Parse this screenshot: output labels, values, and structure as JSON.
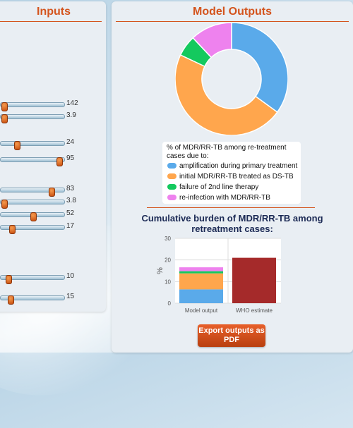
{
  "inputs": {
    "title": "Inputs",
    "sliders": [
      {
        "value": "142",
        "fraction": 0.05
      },
      {
        "value": "3.9",
        "fraction": 0.06
      },
      {
        "value": "24",
        "fraction": 0.25
      },
      {
        "value": "95",
        "fraction": 0.92
      },
      {
        "value": "83",
        "fraction": 0.8
      },
      {
        "value": "3.8",
        "fraction": 0.05
      },
      {
        "value": "52",
        "fraction": 0.51
      },
      {
        "value": "17",
        "fraction": 0.18
      },
      {
        "value": "10",
        "fraction": 0.12
      },
      {
        "value": "15",
        "fraction": 0.15
      }
    ],
    "stray_marks": [
      ":",
      "/"
    ]
  },
  "outputs": {
    "title": "Model Outputs",
    "legend_title": "% of MDR/RR-TB among re-treatment cases due to:",
    "legend": [
      {
        "label": "amplification during primary treatment",
        "color": "#5aaaea"
      },
      {
        "label": "initial MDR/RR-TB treated as DS-TB",
        "color": "#ffa64d"
      },
      {
        "label": "failure of 2nd line therapy",
        "color": "#14c95e"
      },
      {
        "label": "re-infection with MDR/RR-TB",
        "color": "#ee82ee"
      }
    ],
    "burden_title": "Cumulative burden of MDR/RR-TB among retreatment cases:",
    "export_label": "Export outputs as PDF"
  },
  "chart_data": [
    {
      "type": "pie",
      "title": "",
      "slices": [
        {
          "label": "amplification during primary treatment",
          "value": 35,
          "color": "#5aaaea"
        },
        {
          "label": "initial MDR/RR-TB treated as DS-TB",
          "value": 47,
          "color": "#ffa64d"
        },
        {
          "label": "failure of 2nd line therapy",
          "value": 6,
          "color": "#14c95e"
        },
        {
          "label": "re-infection with MDR/RR-TB",
          "value": 12,
          "color": "#ee82ee"
        }
      ]
    },
    {
      "type": "bar",
      "title": "Cumulative burden of MDR/RR-TB among retreatment cases:",
      "ylabel": "%",
      "xlabel": "",
      "ylim": [
        0,
        30
      ],
      "yticks": [
        0,
        10,
        20,
        30
      ],
      "grid": true,
      "categories": [
        "Model output",
        "WHO estimate"
      ],
      "stacks": [
        [
          {
            "value": 6.4,
            "color": "#5aaaea"
          },
          {
            "value": 7.4,
            "color": "#ffa64d"
          },
          {
            "value": 1.0,
            "color": "#14c95e"
          },
          {
            "value": 1.8,
            "color": "#ee82ee"
          }
        ],
        [
          {
            "value": 21,
            "color": "#a52a2a"
          }
        ]
      ]
    }
  ]
}
